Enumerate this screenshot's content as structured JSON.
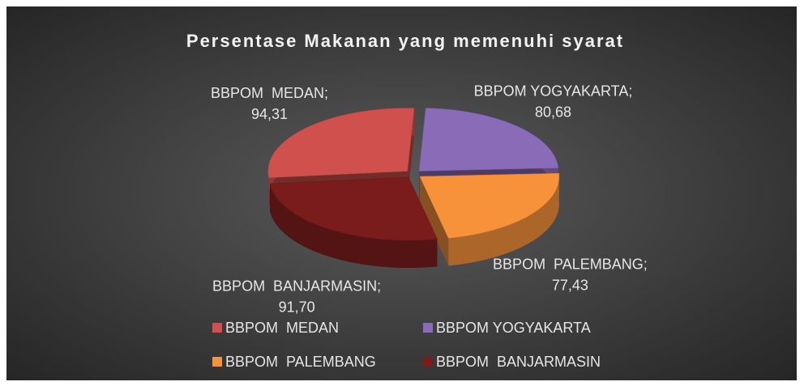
{
  "chart_data": {
    "type": "pie3d",
    "title": "Persentase Makanan yang memenuhi syarat",
    "categories": [
      "BBPOM  MEDAN",
      "BBPOM YOGYAKARTA",
      "BBPOM  PALEMBANG",
      "BBPOM  BANJARMASIN"
    ],
    "values": [
      94.31,
      80.68,
      77.43,
      91.7
    ],
    "value_labels": [
      "94,31",
      "80,68",
      "77,43",
      "91,70"
    ],
    "label_separator": ";",
    "colors": [
      "#d0504d",
      "#8a6bb8",
      "#f7923a",
      "#7a1c1c"
    ],
    "legend": "bottom"
  }
}
